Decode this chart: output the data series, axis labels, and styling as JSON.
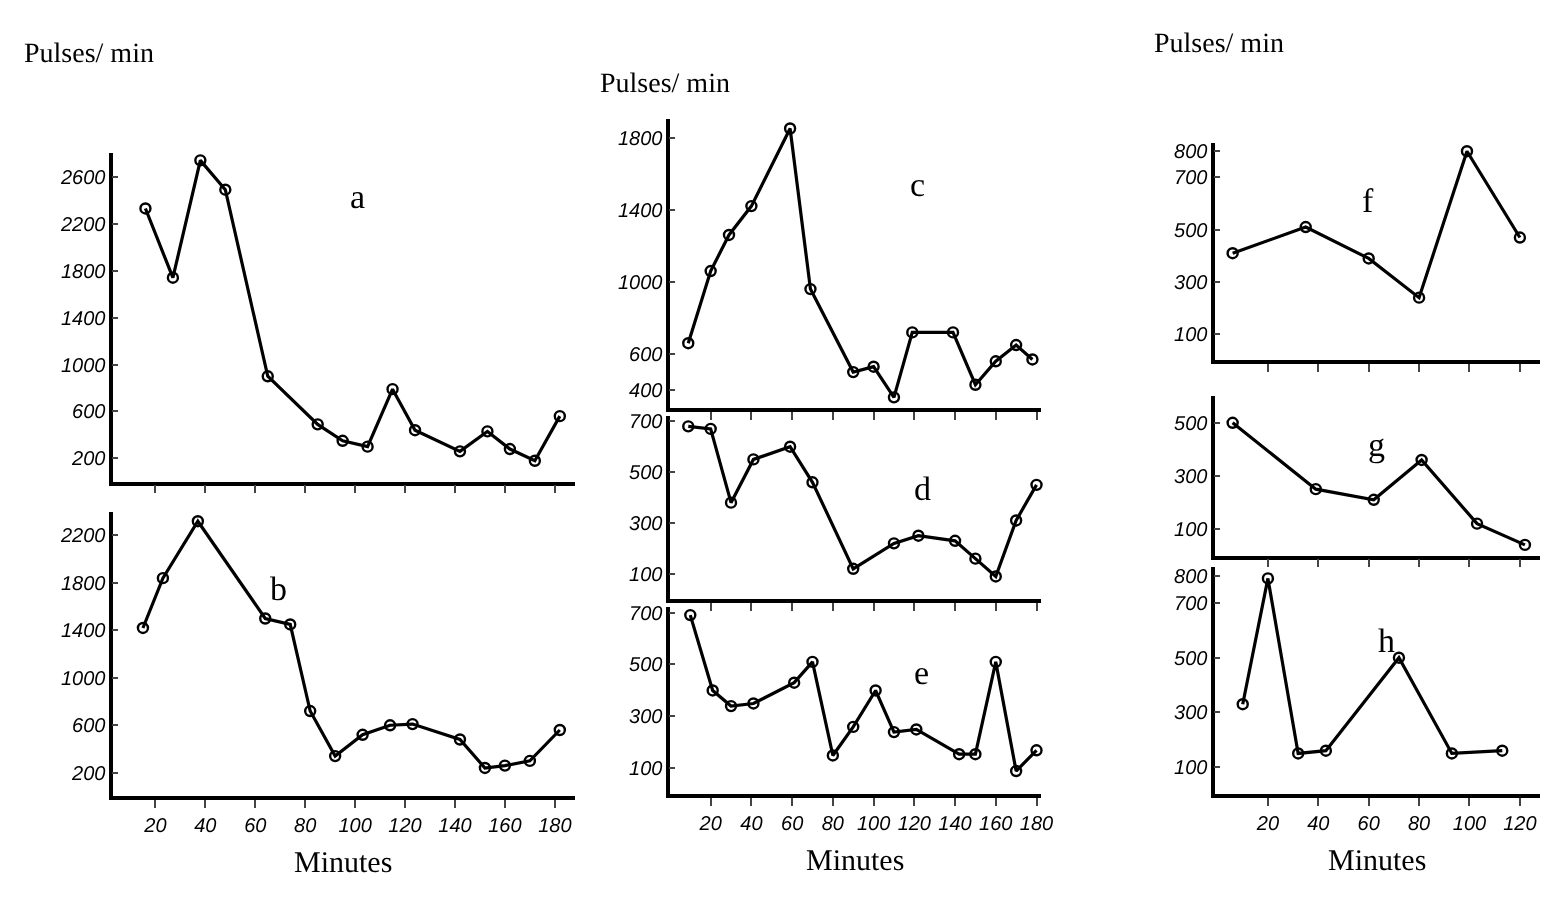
{
  "chart_data": [
    {
      "type": "line",
      "title": "a",
      "ylabel": "Pulses/ min",
      "x": [
        16,
        27,
        38,
        48,
        65,
        85,
        95,
        105,
        115,
        124,
        142,
        153,
        162,
        172,
        182
      ],
      "xlim": [
        3,
        188
      ],
      "xticks": [
        20,
        40,
        60,
        80,
        100,
        120,
        140,
        160,
        180
      ],
      "ylim": [
        0,
        2800
      ],
      "yticks": [
        200,
        600,
        1000,
        1400,
        1800,
        2200,
        2600
      ],
      "tick_labels": "y",
      "marker": "circle",
      "grid": false,
      "series": [
        {
          "color": "#000000",
          "values": [
            2330,
            1740,
            2740,
            2490,
            900,
            490,
            350,
            300,
            790,
            440,
            260,
            430,
            280,
            180,
            560
          ]
        }
      ]
    },
    {
      "type": "line",
      "title": "b",
      "xlabel": "Minutes",
      "x": [
        15,
        23,
        37,
        64,
        74,
        82,
        92,
        103,
        114,
        123,
        142,
        152,
        160,
        170,
        182
      ],
      "xlim": [
        3,
        188
      ],
      "xticks": [
        20,
        40,
        60,
        80,
        100,
        120,
        140,
        160,
        180
      ],
      "ylim": [
        0,
        2400
      ],
      "yticks": [
        200,
        600,
        1000,
        1400,
        1800,
        2200
      ],
      "marker": "circle",
      "grid": false,
      "series": [
        {
          "color": "#000000",
          "values": [
            1420,
            1840,
            2320,
            1500,
            1450,
            720,
            340,
            520,
            600,
            610,
            480,
            240,
            260,
            300,
            560
          ]
        }
      ]
    },
    {
      "type": "line",
      "title": "c",
      "ylabel": "Pulses/ min",
      "x": [
        9,
        20,
        29,
        40,
        59,
        69,
        90,
        100,
        110,
        119,
        139,
        150,
        160,
        170,
        178
      ],
      "xlim": [
        0,
        182
      ],
      "xticks": [
        20,
        40,
        60,
        80,
        100,
        120,
        140,
        160,
        180
      ],
      "ylim": [
        300,
        1900
      ],
      "yticks": [
        400,
        600,
        1000,
        1400,
        1800
      ],
      "tick_labels": "y",
      "marker": "circle",
      "grid": false,
      "series": [
        {
          "color": "#000000",
          "values": [
            660,
            1060,
            1260,
            1420,
            1850,
            960,
            500,
            530,
            360,
            720,
            720,
            430,
            560,
            650,
            570
          ]
        }
      ]
    },
    {
      "type": "line",
      "title": "d",
      "x": [
        9,
        20,
        30,
        41,
        59,
        70,
        90,
        110,
        122,
        140,
        150,
        160,
        170,
        180
      ],
      "xlim": [
        0,
        182
      ],
      "xticks": [
        20,
        40,
        60,
        80,
        100,
        120,
        140,
        160,
        180
      ],
      "ylim": [
        0,
        720
      ],
      "yticks": [
        100,
        300,
        500,
        700
      ],
      "tick_labels": "y",
      "marker": "circle",
      "grid": false,
      "series": [
        {
          "color": "#000000",
          "values": [
            680,
            670,
            380,
            550,
            600,
            460,
            120,
            220,
            250,
            230,
            160,
            90,
            310,
            450
          ]
        }
      ]
    },
    {
      "type": "line",
      "title": "e",
      "xlabel": "Minutes",
      "x": [
        10,
        21,
        30,
        41,
        61,
        70,
        80,
        90,
        101,
        110,
        121,
        142,
        150,
        160,
        170,
        180
      ],
      "xlim": [
        0,
        182
      ],
      "xticks": [
        20,
        40,
        60,
        80,
        100,
        120,
        140,
        160,
        180
      ],
      "ylim": [
        0,
        720
      ],
      "yticks": [
        100,
        300,
        500,
        700
      ],
      "marker": "circle",
      "grid": false,
      "series": [
        {
          "color": "#000000",
          "values": [
            690,
            400,
            340,
            350,
            430,
            510,
            150,
            260,
            400,
            240,
            250,
            155,
            155,
            510,
            90,
            170
          ]
        }
      ]
    },
    {
      "type": "line",
      "title": "f",
      "ylabel": "Pulses/ min",
      "x": [
        6,
        35,
        60,
        80,
        99,
        120
      ],
      "xlim": [
        -1,
        128
      ],
      "xticks": [
        20,
        40,
        60,
        80,
        100,
        120
      ],
      "ylim": [
        0,
        830
      ],
      "yticks": [
        100,
        300,
        500,
        700,
        800
      ],
      "tick_labels": "y",
      "marker": "circle",
      "grid": false,
      "series": [
        {
          "color": "#000000",
          "values": [
            410,
            510,
            390,
            240,
            800,
            470
          ]
        }
      ]
    },
    {
      "type": "line",
      "title": "g",
      "x": [
        6,
        39,
        62,
        81,
        103,
        122
      ],
      "xlim": [
        -1,
        128
      ],
      "xticks": [
        20,
        40,
        60,
        80,
        100,
        120
      ],
      "ylim": [
        0,
        600
      ],
      "yticks": [
        100,
        300,
        500
      ],
      "tick_labels": "y",
      "marker": "circle",
      "grid": false,
      "series": [
        {
          "color": "#000000",
          "values": [
            500,
            250,
            210,
            360,
            120,
            40
          ]
        }
      ]
    },
    {
      "type": "line",
      "title": "h",
      "xlabel": "Minutes",
      "x": [
        10,
        20,
        32,
        43,
        72,
        93,
        113
      ],
      "xlim": [
        -1,
        128
      ],
      "xticks": [
        20,
        40,
        60,
        80,
        100,
        120
      ],
      "ylim": [
        0,
        830
      ],
      "yticks": [
        100,
        300,
        500,
        700,
        800
      ],
      "marker": "circle",
      "grid": false,
      "series": [
        {
          "color": "#000000",
          "values": [
            330,
            790,
            150,
            160,
            500,
            150,
            160
          ]
        }
      ]
    }
  ]
}
